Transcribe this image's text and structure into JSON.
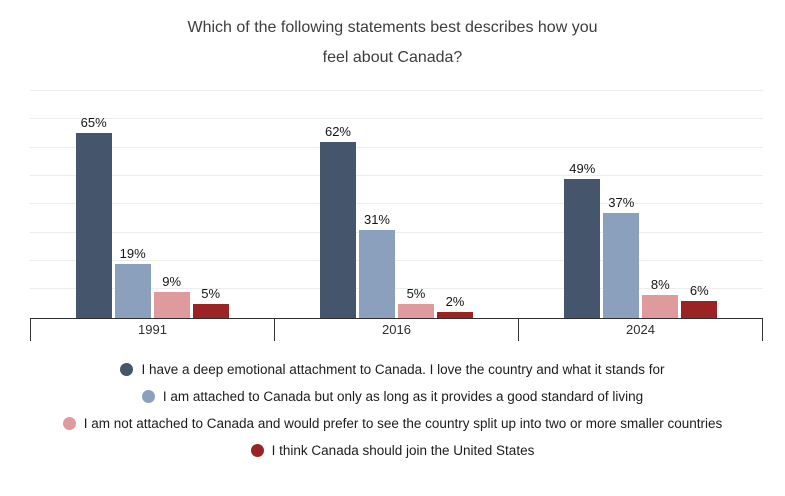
{
  "chart_data": {
    "type": "bar",
    "title": "Which of the following statements best describes how you feel about Canada?",
    "categories": [
      "1991",
      "2016",
      "2024"
    ],
    "series": [
      {
        "name": "I have a deep emotional attachment to Canada. I love the country and what it stands for",
        "color": "#45566c",
        "values": [
          65,
          62,
          49
        ]
      },
      {
        "name": "I am attached to Canada but only as long as it provides a good standard of living",
        "color": "#8ba0bc",
        "values": [
          19,
          31,
          37
        ]
      },
      {
        "name": "I am not attached to Canada and would prefer to see the country split up into two or more smaller countries",
        "color": "#de9a9d",
        "values": [
          9,
          5,
          8
        ]
      },
      {
        "name": "I think Canada should join the United States",
        "color": "#9a2423",
        "values": [
          5,
          2,
          6
        ]
      }
    ],
    "value_label_suffix": "%",
    "ylim": [
      0,
      80
    ],
    "grid": "horizontal every 10%",
    "grid_color": "#ededed",
    "axis_color": "#2f2f2f",
    "legend_position": "bottom"
  }
}
